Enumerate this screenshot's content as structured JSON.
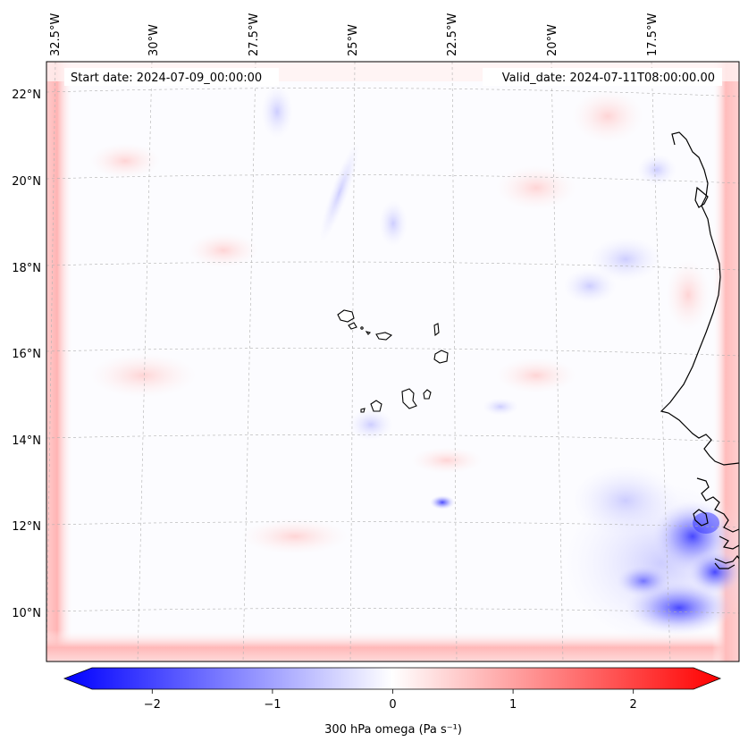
{
  "map": {
    "start_date": "Start date: 2024-07-09_00:00:00",
    "valid_date": "Valid_date: 2024-07-11T08:00:00.00",
    "lon_labels": [
      "32.5°W",
      "30°W",
      "27.5°W",
      "25°W",
      "22.5°W",
      "20°W",
      "17.5°W"
    ],
    "lat_labels": [
      "22°N",
      "20°N",
      "18°N",
      "16°N",
      "14°N",
      "12°N",
      "10°N"
    ],
    "colors": {
      "negative": "#0000ff",
      "positive": "#ff0000",
      "neutral": "#ffffff",
      "coastline": "#000000",
      "gridline": "#b0b0b0"
    }
  },
  "colorbar": {
    "label": "300 hPa omega (Pa s⁻¹)",
    "ticks": [
      "−2",
      "−1",
      "0",
      "1",
      "2"
    ],
    "tick_values": [
      -2,
      -1,
      0,
      1,
      2
    ],
    "range": [
      -2.5,
      2.5
    ]
  }
}
